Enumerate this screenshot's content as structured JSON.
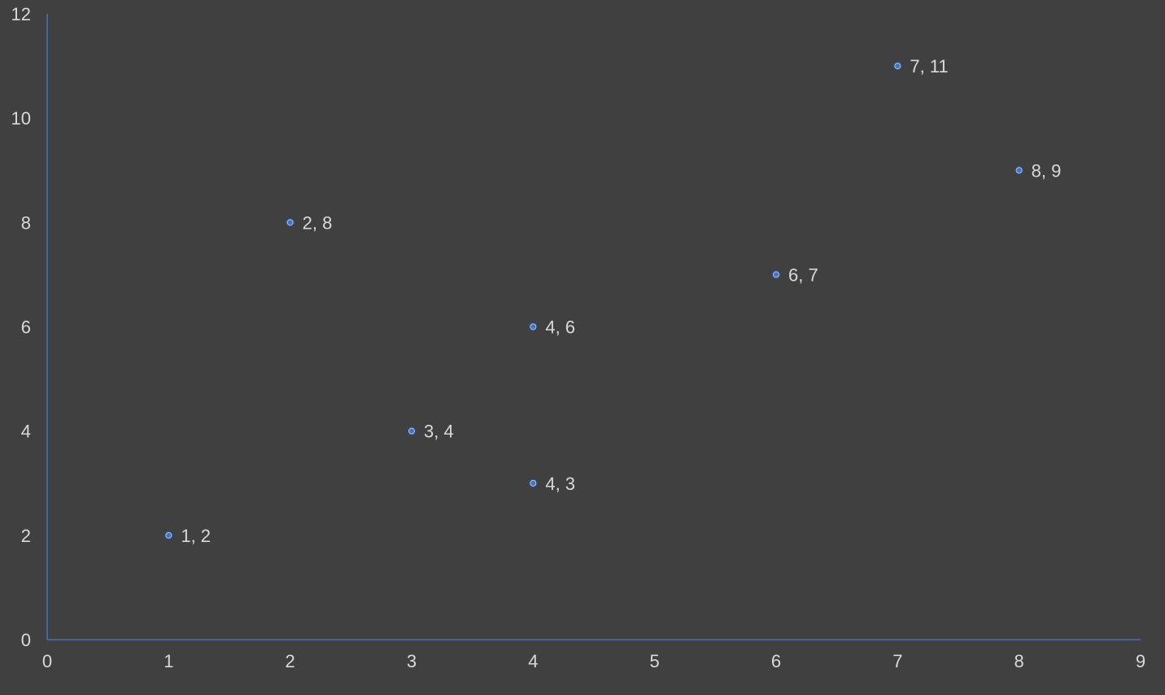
{
  "chart_data": {
    "type": "scatter",
    "title": "",
    "xlabel": "",
    "ylabel": "",
    "xlim": [
      0,
      9
    ],
    "ylim": [
      0,
      12
    ],
    "x_ticks": [
      0,
      1,
      2,
      3,
      4,
      5,
      6,
      7,
      8,
      9
    ],
    "y_ticks": [
      0,
      2,
      4,
      6,
      8,
      10,
      12
    ],
    "grid": false,
    "legend": "none",
    "colors": {
      "background": "#404040",
      "axis": "#4472c4",
      "marker": "#4472c4",
      "text": "#d9d9d9"
    },
    "series": [
      {
        "points": [
          {
            "x": 1,
            "y": 2,
            "label": "1, 2"
          },
          {
            "x": 2,
            "y": 8,
            "label": "2, 8"
          },
          {
            "x": 3,
            "y": 4,
            "label": "3, 4"
          },
          {
            "x": 4,
            "y": 6,
            "label": "4, 6"
          },
          {
            "x": 4,
            "y": 3,
            "label": "4, 3"
          },
          {
            "x": 6,
            "y": 7,
            "label": "6, 7"
          },
          {
            "x": 7,
            "y": 11,
            "label": "7, 11"
          },
          {
            "x": 8,
            "y": 9,
            "label": "8, 9"
          }
        ]
      }
    ]
  }
}
